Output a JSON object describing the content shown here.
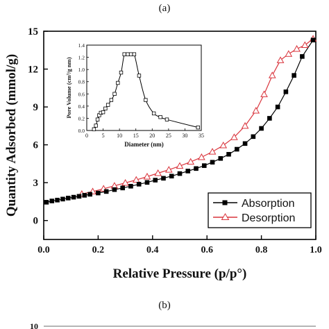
{
  "captions": {
    "a": "(a)",
    "b": "(b)"
  },
  "colors": {
    "absorption": "#000000",
    "desorption": "#d9333b",
    "inset": "#000000",
    "axis": "#000000"
  },
  "chart_data": [
    {
      "type": "line",
      "xlabel": "Relative Pressure (p/p°)",
      "ylabel": "Quantity Adsorbed (mmol/g)",
      "xlim": [
        0.0,
        1.0
      ],
      "ylim": [
        -1.5,
        15
      ],
      "xticks": [
        "0.0",
        "0.2",
        "0.4",
        "0.6",
        "0.8",
        "1.0"
      ],
      "xtick_values": [
        0.0,
        0.2,
        0.4,
        0.6,
        0.8,
        1.0
      ],
      "yticks": [
        "0",
        "3",
        "6",
        "9",
        "12",
        "15"
      ],
      "ytick_values": [
        0,
        3,
        6,
        9,
        12,
        15
      ],
      "legend_position": "bottom-right",
      "series": [
        {
          "name": "Absorption",
          "marker": "filled-square",
          "x": [
            0.01,
            0.03,
            0.05,
            0.07,
            0.09,
            0.11,
            0.13,
            0.15,
            0.17,
            0.2,
            0.23,
            0.26,
            0.29,
            0.32,
            0.35,
            0.38,
            0.41,
            0.44,
            0.47,
            0.5,
            0.53,
            0.56,
            0.59,
            0.62,
            0.65,
            0.68,
            0.71,
            0.74,
            0.77,
            0.8,
            0.83,
            0.86,
            0.89,
            0.92,
            0.95,
            0.99
          ],
          "y": [
            1.45,
            1.55,
            1.62,
            1.7,
            1.78,
            1.85,
            1.92,
            2.0,
            2.08,
            2.18,
            2.3,
            2.45,
            2.58,
            2.72,
            2.88,
            3.02,
            3.2,
            3.35,
            3.52,
            3.72,
            3.92,
            4.12,
            4.35,
            4.62,
            4.92,
            5.25,
            5.65,
            6.1,
            6.65,
            7.3,
            8.1,
            9.0,
            10.2,
            11.5,
            13.0,
            14.3
          ]
        },
        {
          "name": "Desorption",
          "marker": "open-triangle",
          "x": [
            0.14,
            0.18,
            0.22,
            0.26,
            0.3,
            0.34,
            0.38,
            0.42,
            0.46,
            0.5,
            0.54,
            0.58,
            0.62,
            0.66,
            0.7,
            0.74,
            0.78,
            0.81,
            0.84,
            0.87,
            0.9,
            0.93,
            0.96,
            0.99
          ],
          "y": [
            2.1,
            2.3,
            2.52,
            2.75,
            2.98,
            3.22,
            3.48,
            3.75,
            4.02,
            4.32,
            4.65,
            5.02,
            5.45,
            5.95,
            6.6,
            7.5,
            8.7,
            10.0,
            11.5,
            12.7,
            13.2,
            13.6,
            13.9,
            14.4
          ]
        }
      ]
    },
    {
      "type": "line",
      "xlabel": "Diameter (nm)",
      "ylabel": "Pore Volume (cm³/g nm)",
      "xlim": [
        0,
        35
      ],
      "ylim": [
        0,
        1.4
      ],
      "xticks": [
        "0",
        "5",
        "10",
        "15",
        "20",
        "25",
        "30",
        "35"
      ],
      "xtick_values": [
        0,
        5,
        10,
        15,
        20,
        25,
        30,
        35
      ],
      "yticks": [
        "0.0",
        "0.2",
        "0.4",
        "0.6",
        "0.8",
        "1.0",
        "1.2",
        "1.4"
      ],
      "ytick_values": [
        0.0,
        0.2,
        0.4,
        0.6,
        0.8,
        1.0,
        1.2,
        1.4
      ],
      "series": [
        {
          "marker": "open-square",
          "x": [
            2.2,
            2.8,
            3.3,
            3.8,
            4.3,
            5.0,
            5.7,
            6.5,
            7.5,
            8.5,
            9.5,
            10.5,
            11.5,
            12.5,
            13.5,
            14.5,
            16.0,
            18.0,
            20.5,
            22.5,
            24.5,
            34.0
          ],
          "y": [
            0.02,
            0.08,
            0.18,
            0.25,
            0.29,
            0.3,
            0.36,
            0.42,
            0.5,
            0.6,
            0.78,
            0.95,
            1.25,
            1.25,
            1.25,
            1.25,
            0.9,
            0.5,
            0.28,
            0.22,
            0.18,
            0.05
          ]
        }
      ]
    }
  ],
  "second_chart_partial": {
    "ytick_top": "10"
  }
}
